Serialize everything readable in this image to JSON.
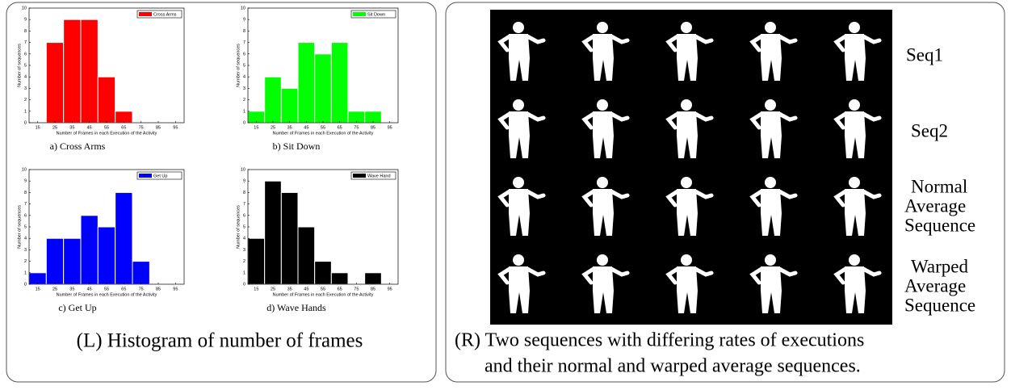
{
  "chart_data": [
    {
      "type": "histogram",
      "title": "a) Cross Arms",
      "xlabel": "Number of Frames in each Execution of the Activity",
      "ylabel": "Number of sequences",
      "series": [
        {
          "name": "Cross Arms",
          "color": "#ff0000",
          "bins": [
            20,
            30,
            40,
            50,
            60,
            70
          ],
          "values": [
            7,
            9,
            9,
            4,
            1
          ]
        }
      ],
      "xlim": [
        10,
        100
      ],
      "xticks": [
        15,
        25,
        35,
        45,
        55,
        65,
        75,
        85,
        95
      ],
      "ylim": [
        0,
        10
      ],
      "yticks": [
        0,
        1,
        2,
        3,
        4,
        5,
        6,
        7,
        8,
        9,
        10
      ],
      "legend": "upper right"
    },
    {
      "type": "histogram",
      "title": "b) Sit Down",
      "xlabel": "Number of Frames in each Execution of the Activity",
      "ylabel": "Number of sequences",
      "series": [
        {
          "name": "Sit Down",
          "color": "#00ff00",
          "bins": [
            10,
            20,
            30,
            40,
            50,
            60,
            70,
            80,
            90
          ],
          "values": [
            1,
            4,
            3,
            7,
            6,
            7,
            1,
            1
          ]
        }
      ],
      "xlim": [
        10,
        100
      ],
      "xticks": [
        15,
        25,
        35,
        45,
        55,
        65,
        75,
        85,
        95
      ],
      "ylim": [
        0,
        10
      ],
      "yticks": [
        0,
        1,
        2,
        3,
        4,
        5,
        6,
        7,
        8,
        9,
        10
      ],
      "legend": "upper right"
    },
    {
      "type": "histogram",
      "title": "c) Get Up",
      "xlabel": "Number of Frames in each Execution of the Activity",
      "ylabel": "Number of sequences",
      "series": [
        {
          "name": "Get Up",
          "color": "#0000ff",
          "bins": [
            10,
            20,
            30,
            40,
            50,
            60,
            70,
            80
          ],
          "values": [
            1,
            4,
            4,
            6,
            5,
            8,
            2
          ]
        }
      ],
      "xlim": [
        10,
        100
      ],
      "xticks": [
        15,
        25,
        35,
        45,
        55,
        65,
        75,
        85,
        95
      ],
      "ylim": [
        0,
        10
      ],
      "yticks": [
        0,
        1,
        2,
        3,
        4,
        5,
        6,
        7,
        8,
        9,
        10
      ],
      "legend": "upper right"
    },
    {
      "type": "histogram",
      "title": "d) Wave Hands",
      "xlabel": "Number of Frames in each Execution of the Activity",
      "ylabel": "Number of sequences",
      "series": [
        {
          "name": "Wave Hand",
          "color": "#000000",
          "bins": [
            10,
            20,
            30,
            40,
            50,
            60,
            70,
            80,
            90
          ],
          "values": [
            4,
            9,
            8,
            5,
            2,
            1,
            0,
            1
          ]
        }
      ],
      "xlim": [
        10,
        100
      ],
      "xticks": [
        15,
        25,
        35,
        45,
        55,
        65,
        75,
        85,
        95
      ],
      "ylim": [
        0,
        10
      ],
      "yticks": [
        0,
        1,
        2,
        3,
        4,
        5,
        6,
        7,
        8,
        9,
        10
      ],
      "legend": "upper right"
    }
  ],
  "left_caption": "(L) Histogram of number of frames",
  "right_panel": {
    "row_labels": [
      [
        "Seq1"
      ],
      [
        "Seq2"
      ],
      [
        "Normal",
        "Average",
        "Sequence"
      ],
      [
        "Warped",
        "Average",
        "Sequence"
      ]
    ],
    "caption": [
      "(R) Two sequences with differing rates of executions",
      "and their normal and warped average sequences."
    ]
  }
}
